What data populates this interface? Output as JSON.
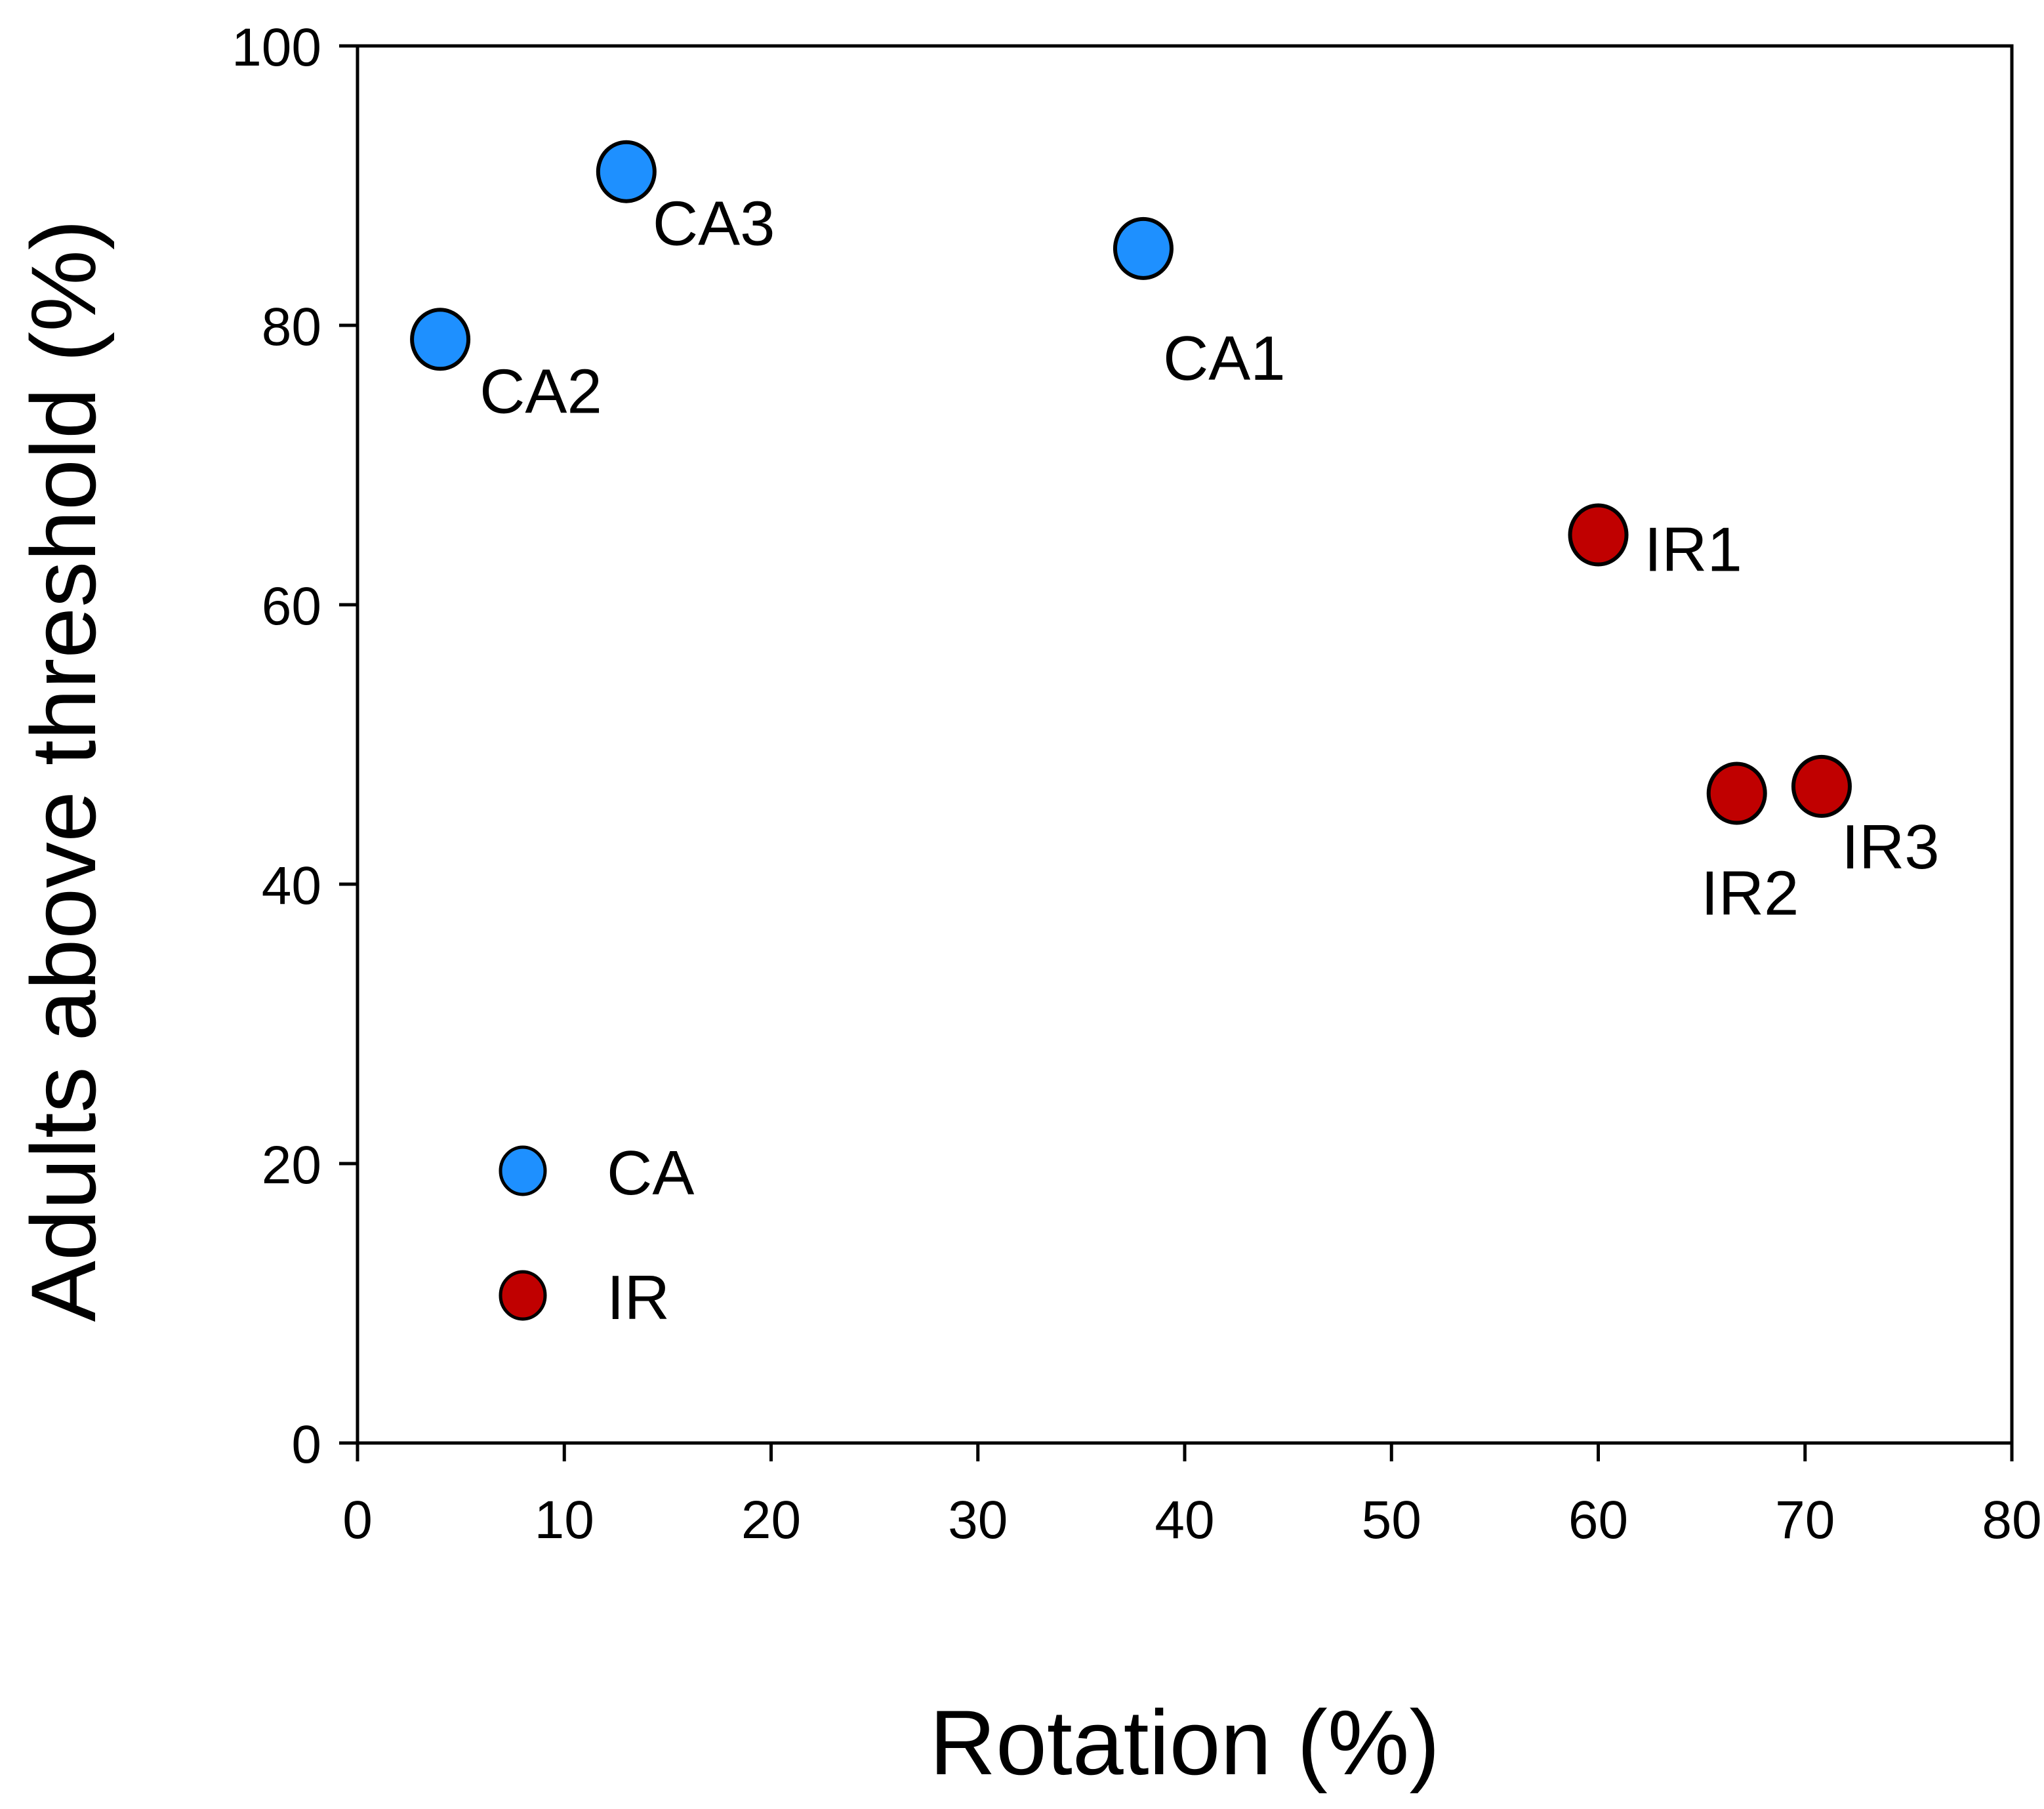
{
  "chart_data": {
    "type": "scatter",
    "title": "",
    "xlabel": "Rotation (%)",
    "ylabel": "Adults above threshold (%)",
    "xlim": [
      0,
      80
    ],
    "ylim": [
      0,
      100
    ],
    "xticks": [
      0,
      10,
      20,
      30,
      40,
      50,
      60,
      70,
      80
    ],
    "yticks": [
      0,
      20,
      40,
      60,
      80,
      100
    ],
    "grid": false,
    "legend_position": "lower-left",
    "series": [
      {
        "name": "CA",
        "color": "#1e90ff",
        "points": [
          {
            "label": "CA1",
            "x": 38,
            "y": 85.5
          },
          {
            "label": "CA2",
            "x": 4,
            "y": 79
          },
          {
            "label": "CA3",
            "x": 13,
            "y": 91
          }
        ]
      },
      {
        "name": "IR",
        "color": "#c00000",
        "points": [
          {
            "label": "IR1",
            "x": 60,
            "y": 65
          },
          {
            "label": "IR2",
            "x": 66.7,
            "y": 46.5
          },
          {
            "label": "IR3",
            "x": 70.8,
            "y": 47
          }
        ]
      }
    ]
  }
}
